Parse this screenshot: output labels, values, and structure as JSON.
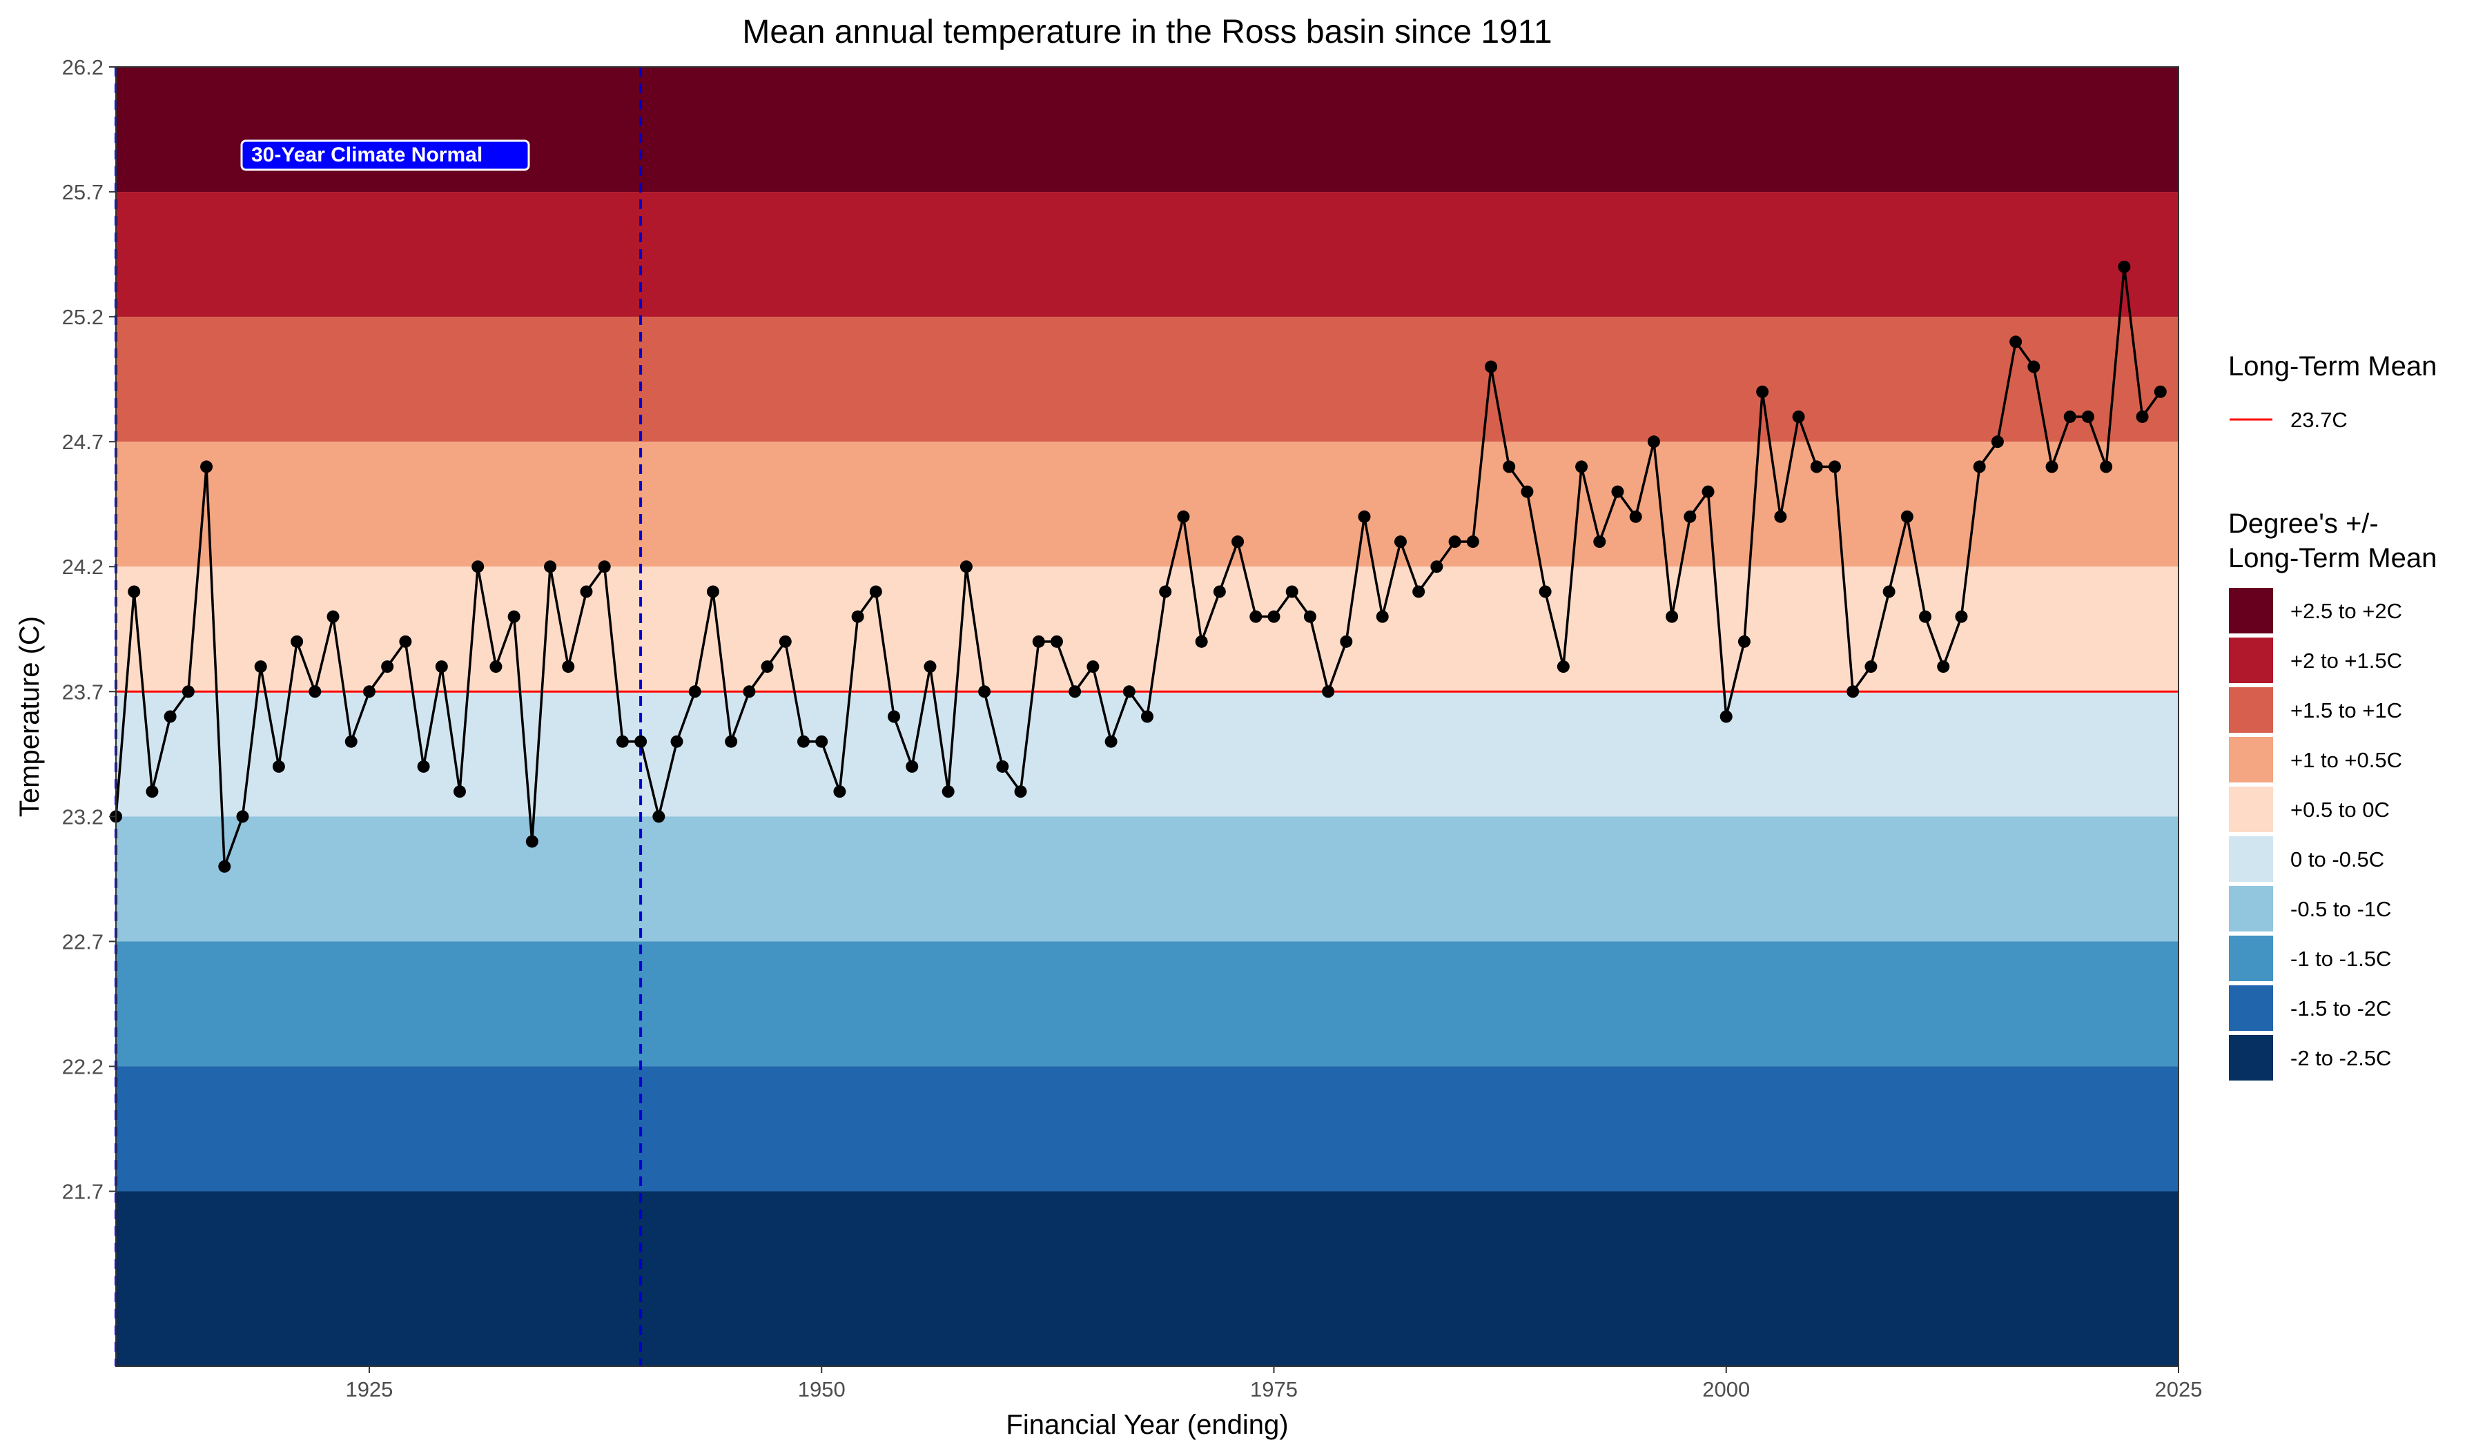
{
  "chart_data": {
    "type": "line",
    "title": "Mean annual temperature in the Ross basin since 1911",
    "xlabel": "Financial Year (ending)",
    "ylabel": "Temperature (C)",
    "xlim": [
      1911,
      2025
    ],
    "ylim": [
      21.0,
      26.2
    ],
    "x_ticks": [
      1925,
      1950,
      1975,
      2000,
      2025
    ],
    "y_ticks": [
      21.7,
      22.2,
      22.7,
      23.2,
      23.7,
      24.2,
      24.7,
      25.2,
      25.7,
      26.2
    ],
    "grid": false,
    "long_term_mean": {
      "value": 23.7,
      "color": "#ff0000"
    },
    "climate_normal": {
      "label": "30-Year Climate Normal",
      "start": 1911,
      "end": 1940,
      "color": "#0000cc",
      "label_bg": "#0000ff"
    },
    "bands": [
      {
        "label": "+2.5 to +2C",
        "from": 25.7,
        "to": 26.2,
        "color": "#67001f"
      },
      {
        "label": "+2 to +1.5C",
        "from": 25.2,
        "to": 25.7,
        "color": "#b2182b"
      },
      {
        "label": "+1.5 to +1C",
        "from": 24.7,
        "to": 25.2,
        "color": "#d6604d"
      },
      {
        "label": "+1 to +0.5C",
        "from": 24.2,
        "to": 24.7,
        "color": "#f4a582"
      },
      {
        "label": "+0.5 to 0C",
        "from": 23.7,
        "to": 24.2,
        "color": "#fddbc7"
      },
      {
        "label": "0 to -0.5C",
        "from": 23.2,
        "to": 23.7,
        "color": "#d1e5f0"
      },
      {
        "label": "-0.5 to -1C",
        "from": 22.7,
        "to": 23.2,
        "color": "#92c5de"
      },
      {
        "label": "-1 to -1.5C",
        "from": 22.2,
        "to": 22.7,
        "color": "#4393c3"
      },
      {
        "label": "-1.5 to -2C",
        "from": 21.7,
        "to": 22.2,
        "color": "#2166ac"
      },
      {
        "label": "-2 to -2.5C",
        "from": 21.0,
        "to": 21.7,
        "color": "#053061"
      }
    ],
    "legend": {
      "mean_title": "Long-Term Mean",
      "mean_label": "23.7C",
      "bands_title_line1": "Degree's +/-",
      "bands_title_line2": "Long-Term Mean",
      "placement": "right"
    },
    "series": [
      {
        "color": "#000000",
        "x": [
          1911,
          1912,
          1913,
          1914,
          1915,
          1916,
          1917,
          1918,
          1919,
          1920,
          1921,
          1922,
          1923,
          1924,
          1925,
          1926,
          1927,
          1928,
          1929,
          1930,
          1931,
          1932,
          1933,
          1934,
          1935,
          1936,
          1937,
          1938,
          1939,
          1940,
          1941,
          1942,
          1943,
          1944,
          1945,
          1946,
          1947,
          1948,
          1949,
          1950,
          1951,
          1952,
          1953,
          1954,
          1955,
          1956,
          1957,
          1958,
          1959,
          1960,
          1961,
          1962,
          1963,
          1964,
          1965,
          1966,
          1967,
          1968,
          1969,
          1970,
          1971,
          1972,
          1973,
          1974,
          1975,
          1976,
          1977,
          1978,
          1979,
          1980,
          1981,
          1982,
          1983,
          1984,
          1985,
          1986,
          1987,
          1988,
          1989,
          1990,
          1991,
          1992,
          1993,
          1994,
          1995,
          1996,
          1997,
          1998,
          1999,
          2000,
          2001,
          2002,
          2003,
          2004,
          2005,
          2006,
          2007,
          2008,
          2009,
          2010,
          2011,
          2012,
          2013,
          2014,
          2015,
          2016,
          2017,
          2018,
          2019,
          2020,
          2021,
          2022,
          2023,
          2024
        ],
        "y": [
          23.2,
          24.1,
          23.3,
          23.6,
          23.7,
          24.6,
          23.0,
          23.2,
          23.8,
          23.4,
          23.9,
          23.7,
          24.0,
          23.5,
          23.7,
          23.8,
          23.9,
          23.4,
          23.8,
          23.3,
          24.2,
          23.8,
          24.0,
          23.1,
          24.2,
          23.8,
          24.1,
          24.2,
          23.5,
          23.5,
          23.2,
          23.5,
          23.7,
          24.1,
          23.5,
          23.7,
          23.8,
          23.9,
          23.5,
          23.5,
          23.3,
          24.0,
          24.1,
          23.6,
          23.4,
          23.8,
          23.3,
          24.2,
          23.7,
          23.4,
          23.3,
          23.9,
          23.9,
          23.7,
          23.8,
          23.5,
          23.7,
          23.6,
          24.1,
          24.4,
          23.9,
          24.1,
          24.3,
          24.0,
          24.0,
          24.1,
          24.0,
          23.7,
          23.9,
          24.4,
          24.0,
          24.3,
          24.1,
          24.2,
          24.3,
          24.3,
          25.0,
          24.6,
          24.5,
          24.1,
          23.8,
          24.6,
          24.3,
          24.5,
          24.4,
          24.7,
          24.0,
          24.4,
          24.5,
          23.6,
          23.9,
          24.9,
          24.4,
          24.8,
          24.6,
          24.6,
          23.7,
          23.8,
          24.1,
          24.4,
          24.0,
          23.8,
          24.0,
          24.6,
          24.7,
          25.1,
          25.0,
          24.6,
          24.8,
          24.8,
          24.6,
          25.4,
          24.8,
          24.9
        ]
      }
    ]
  }
}
